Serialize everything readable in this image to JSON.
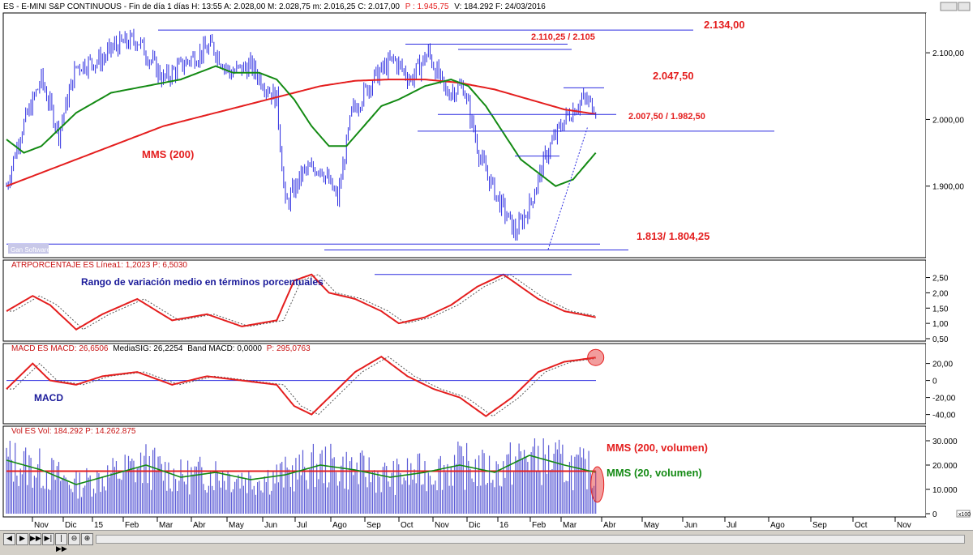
{
  "window": {
    "header_text": "ES - E-MINI S&P CONTINUOUS - Fin de día 1 días H: 13:55 A: 2.028,00 M: 2.028,75 m: 2.016,25 C: 2.017,00",
    "header_p": "P : 1.945,75",
    "header_tail": "V: 184.292 F: 24/03/2016",
    "watermark": "Gan Software"
  },
  "nav_buttons": [
    "◀",
    "▶",
    "▶▶",
    "▶|",
    "|▶▶",
    "⊖",
    "⊕"
  ],
  "chart_data": [
    {
      "type": "line",
      "panel": "price",
      "x_labels": [
        "Nov",
        "Dic",
        "15",
        "Feb",
        "Mar",
        "Abr",
        "May",
        "Jun",
        "Jul",
        "Ago",
        "Sep",
        "Oct",
        "Nov",
        "Dic",
        "16",
        "Feb",
        "Mar",
        "Abr",
        "May",
        "Jun",
        "Jul",
        "Ago",
        "Sep",
        "Oct",
        "Nov"
      ],
      "y_ticks": [
        "2.100,00",
        "2.000,00",
        "1.900,00"
      ],
      "ylim": [
        1800,
        2150
      ],
      "series_key_points": {
        "price": [
          [
            0,
            1900
          ],
          [
            8,
            1980
          ],
          [
            20,
            2060
          ],
          [
            30,
            1980
          ],
          [
            40,
            2080
          ],
          [
            55,
            2090
          ],
          [
            62,
            2110
          ],
          [
            75,
            2120
          ],
          [
            90,
            2060
          ],
          [
            105,
            2090
          ],
          [
            118,
            2110
          ],
          [
            128,
            2070
          ],
          [
            140,
            2080
          ],
          [
            155,
            2030
          ],
          [
            160,
            1870
          ],
          [
            170,
            1920
          ],
          [
            180,
            1930
          ],
          [
            190,
            1880
          ],
          [
            198,
            2010
          ],
          [
            210,
            2060
          ],
          [
            222,
            2090
          ],
          [
            232,
            2060
          ],
          [
            242,
            2100
          ],
          [
            252,
            2040
          ],
          [
            262,
            2050
          ],
          [
            272,
            1940
          ],
          [
            282,
            1880
          ],
          [
            292,
            1830
          ],
          [
            300,
            1870
          ],
          [
            310,
            1950
          ],
          [
            320,
            2000
          ],
          [
            330,
            2030
          ],
          [
            338,
            2020
          ]
        ],
        "mms200": [
          [
            0,
            1900
          ],
          [
            30,
            1930
          ],
          [
            60,
            1960
          ],
          [
            90,
            1990
          ],
          [
            120,
            2010
          ],
          [
            150,
            2030
          ],
          [
            180,
            2050
          ],
          [
            200,
            2058
          ],
          [
            220,
            2060
          ],
          [
            240,
            2060
          ],
          [
            260,
            2055
          ],
          [
            280,
            2045
          ],
          [
            300,
            2030
          ],
          [
            320,
            2015
          ],
          [
            338,
            2008
          ]
        ],
        "mms20": [
          [
            0,
            1970
          ],
          [
            10,
            1950
          ],
          [
            20,
            1960
          ],
          [
            40,
            2010
          ],
          [
            60,
            2040
          ],
          [
            80,
            2050
          ],
          [
            100,
            2060
          ],
          [
            120,
            2080
          ],
          [
            130,
            2070
          ],
          [
            145,
            2070
          ],
          [
            155,
            2060
          ],
          [
            165,
            2030
          ],
          [
            175,
            1990
          ],
          [
            185,
            1960
          ],
          [
            195,
            1960
          ],
          [
            205,
            1990
          ],
          [
            215,
            2020
          ],
          [
            225,
            2030
          ],
          [
            240,
            2050
          ],
          [
            255,
            2060
          ],
          [
            265,
            2050
          ],
          [
            275,
            2020
          ],
          [
            285,
            1980
          ],
          [
            295,
            1940
          ],
          [
            305,
            1920
          ],
          [
            315,
            1900
          ],
          [
            325,
            1910
          ],
          [
            338,
            1950
          ]
        ]
      },
      "annotations": [
        {
          "text": "2.134,00",
          "value": 2134
        },
        {
          "text": "2.110,25 / 2.105",
          "value": 2108
        },
        {
          "text": "2.047,50",
          "value": 2047.5
        },
        {
          "text": "2.007,50 / 1.982,50",
          "value": 1995
        },
        {
          "text": "1.813/ 1.804,25",
          "value": 1808
        },
        {
          "text": "MMS (200)",
          "value": 1940
        }
      ]
    },
    {
      "type": "line",
      "panel": "atr",
      "header": "ATRPORCENTAJE ES Línea1: 1,2023 P: 6,5030",
      "title_text": "Rango de variación medio en términos porcentuales",
      "y_ticks": [
        "2,50",
        "2,00",
        "1,50",
        "1,00",
        "0,50"
      ],
      "ylim": [
        0.5,
        2.7
      ],
      "series_key_points": [
        [
          0,
          1.4
        ],
        [
          15,
          1.9
        ],
        [
          25,
          1.6
        ],
        [
          40,
          0.8
        ],
        [
          55,
          1.3
        ],
        [
          75,
          1.8
        ],
        [
          95,
          1.1
        ],
        [
          115,
          1.3
        ],
        [
          135,
          0.9
        ],
        [
          155,
          1.1
        ],
        [
          165,
          2.4
        ],
        [
          175,
          2.6
        ],
        [
          185,
          2.0
        ],
        [
          200,
          1.8
        ],
        [
          215,
          1.4
        ],
        [
          225,
          1.0
        ],
        [
          240,
          1.2
        ],
        [
          255,
          1.6
        ],
        [
          270,
          2.2
        ],
        [
          285,
          2.6
        ],
        [
          295,
          2.2
        ],
        [
          305,
          1.8
        ],
        [
          320,
          1.4
        ],
        [
          338,
          1.2
        ]
      ]
    },
    {
      "type": "line",
      "panel": "macd",
      "header_parts": [
        "MACD ES MACD: 26,6506",
        "MediaSIG: 26,2254",
        "Band MACD: 0,0000",
        "P: 295,0763"
      ],
      "label": "MACD",
      "y_ticks": [
        "20,00",
        "0",
        "-20,00",
        "-40,00"
      ],
      "ylim": [
        -48,
        32
      ],
      "series_key_points": [
        [
          0,
          -10
        ],
        [
          15,
          20
        ],
        [
          25,
          0
        ],
        [
          40,
          -5
        ],
        [
          55,
          5
        ],
        [
          75,
          10
        ],
        [
          95,
          -5
        ],
        [
          115,
          5
        ],
        [
          135,
          0
        ],
        [
          155,
          -5
        ],
        [
          165,
          -30
        ],
        [
          175,
          -40
        ],
        [
          185,
          -20
        ],
        [
          200,
          10
        ],
        [
          215,
          28
        ],
        [
          230,
          5
        ],
        [
          245,
          -10
        ],
        [
          260,
          -20
        ],
        [
          275,
          -42
        ],
        [
          290,
          -20
        ],
        [
          305,
          10
        ],
        [
          320,
          22
        ],
        [
          338,
          27
        ]
      ]
    },
    {
      "type": "bar",
      "panel": "volume",
      "header": "Vol ES Vol: 184.292 P: 14.262.875",
      "y_ticks": [
        "30.000",
        "20.000",
        "10.000",
        "0"
      ],
      "ylim": [
        0,
        32000
      ],
      "corner_label": "x100",
      "legend": [
        "MMS (200, volumen)",
        "MMS (20, volumen)"
      ],
      "mms200_level": 17500,
      "mms20_key_points": [
        [
          0,
          22000
        ],
        [
          20,
          18000
        ],
        [
          40,
          12000
        ],
        [
          60,
          16000
        ],
        [
          80,
          20000
        ],
        [
          100,
          15000
        ],
        [
          120,
          17000
        ],
        [
          140,
          14000
        ],
        [
          160,
          16000
        ],
        [
          180,
          20000
        ],
        [
          200,
          18000
        ],
        [
          220,
          15000
        ],
        [
          240,
          17000
        ],
        [
          260,
          20000
        ],
        [
          280,
          17000
        ],
        [
          300,
          24000
        ],
        [
          320,
          20000
        ],
        [
          338,
          17000
        ]
      ]
    }
  ],
  "colors": {
    "price": "#2b2be0",
    "mms200": "#e41e1e",
    "mms20": "#138a13",
    "atr": "#e41e1e",
    "macd": "#e41e1e",
    "signal": "#555555",
    "volume": "#5b5bd6",
    "hline": "#2b2be0"
  }
}
